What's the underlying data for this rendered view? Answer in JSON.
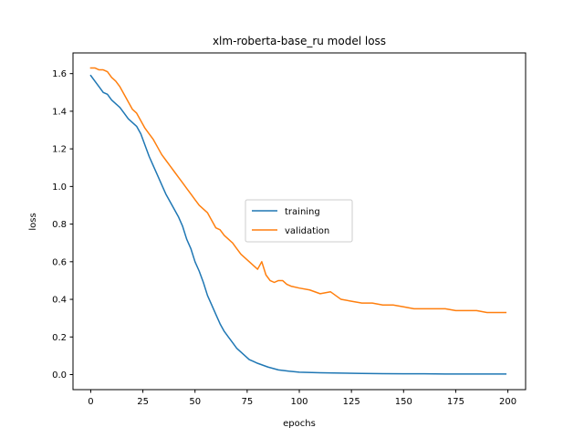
{
  "chart_data": {
    "type": "line",
    "title": "xlm-roberta-base_ru model loss",
    "xlabel": "epochs",
    "ylabel": "loss",
    "xlim": [
      -8.5,
      208.5
    ],
    "ylim": [
      -0.08,
      1.71
    ],
    "xticks": [
      0,
      25,
      50,
      75,
      100,
      125,
      150,
      175,
      200
    ],
    "yticks": [
      0.0,
      0.2,
      0.4,
      0.6,
      0.8,
      1.0,
      1.2,
      1.4,
      1.6
    ],
    "grid": false,
    "legend_position": "center-right",
    "series": [
      {
        "name": "training",
        "color": "#1f77b4",
        "x": [
          0,
          2,
          4,
          6,
          8,
          10,
          12,
          14,
          16,
          18,
          20,
          22,
          24,
          26,
          28,
          30,
          32,
          34,
          36,
          38,
          40,
          42,
          44,
          46,
          48,
          50,
          52,
          54,
          56,
          58,
          60,
          62,
          64,
          66,
          68,
          70,
          72,
          74,
          76,
          78,
          80,
          85,
          90,
          95,
          100,
          110,
          120,
          130,
          140,
          150,
          160,
          170,
          180,
          190,
          199
        ],
        "y": [
          1.59,
          1.56,
          1.53,
          1.5,
          1.49,
          1.46,
          1.44,
          1.42,
          1.39,
          1.36,
          1.34,
          1.32,
          1.28,
          1.22,
          1.16,
          1.11,
          1.06,
          1.01,
          0.96,
          0.92,
          0.88,
          0.84,
          0.79,
          0.72,
          0.67,
          0.6,
          0.55,
          0.49,
          0.42,
          0.37,
          0.32,
          0.27,
          0.23,
          0.2,
          0.17,
          0.14,
          0.12,
          0.1,
          0.08,
          0.07,
          0.06,
          0.04,
          0.025,
          0.018,
          0.013,
          0.01,
          0.008,
          0.006,
          0.005,
          0.004,
          0.004,
          0.003,
          0.003,
          0.003,
          0.003
        ]
      },
      {
        "name": "validation",
        "color": "#ff7f0e",
        "x": [
          0,
          2,
          4,
          6,
          8,
          10,
          12,
          14,
          16,
          18,
          20,
          22,
          24,
          26,
          28,
          30,
          32,
          34,
          36,
          38,
          40,
          42,
          44,
          46,
          48,
          50,
          52,
          54,
          56,
          58,
          60,
          62,
          64,
          66,
          68,
          70,
          72,
          74,
          76,
          78,
          80,
          82,
          84,
          86,
          88,
          90,
          92,
          94,
          96,
          100,
          105,
          110,
          115,
          120,
          125,
          130,
          135,
          140,
          145,
          150,
          155,
          160,
          165,
          170,
          175,
          180,
          185,
          190,
          195,
          199
        ],
        "y": [
          1.63,
          1.63,
          1.62,
          1.62,
          1.61,
          1.58,
          1.56,
          1.53,
          1.49,
          1.45,
          1.41,
          1.39,
          1.35,
          1.31,
          1.28,
          1.25,
          1.21,
          1.17,
          1.14,
          1.11,
          1.08,
          1.05,
          1.02,
          0.99,
          0.96,
          0.93,
          0.9,
          0.88,
          0.86,
          0.82,
          0.78,
          0.77,
          0.74,
          0.72,
          0.7,
          0.67,
          0.64,
          0.62,
          0.6,
          0.58,
          0.56,
          0.6,
          0.53,
          0.5,
          0.49,
          0.5,
          0.5,
          0.48,
          0.47,
          0.46,
          0.45,
          0.43,
          0.44,
          0.4,
          0.39,
          0.38,
          0.38,
          0.37,
          0.37,
          0.36,
          0.35,
          0.35,
          0.35,
          0.35,
          0.34,
          0.34,
          0.34,
          0.33,
          0.33,
          0.33
        ]
      }
    ]
  }
}
